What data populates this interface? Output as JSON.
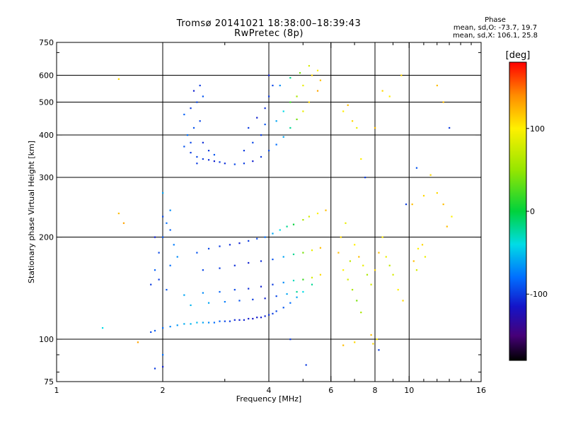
{
  "chart_data": {
    "type": "scatter",
    "title": "Tromsø 20141021 18:38:00–18:39:43",
    "subtitle": "RwPretec (8p)",
    "xlabel": "Frequency [MHz]",
    "ylabel": "Stationary phase Virtual Height [km]",
    "xscale": "log",
    "yscale": "log",
    "xlim": [
      1,
      16
    ],
    "ylim": [
      75,
      750
    ],
    "x_ticks": [
      1,
      2,
      4,
      6,
      8,
      10,
      16
    ],
    "x_tick_labels": [
      "1",
      "2",
      "4",
      "6",
      "8",
      "10",
      "16"
    ],
    "y_ticks": [
      75,
      100,
      200,
      300,
      400,
      500,
      600,
      750
    ],
    "y_tick_labels": [
      "75",
      "100",
      "200",
      "300",
      "400",
      "500",
      "600",
      "750"
    ],
    "grid": true,
    "stats": {
      "header": "Phase",
      "line_o": "mean, sd,O: -73.7, 19.7",
      "line_x": "mean, sd,X: 106.1, 25.8"
    },
    "colorbar": {
      "label": "[deg]",
      "ticks": [
        100,
        0,
        -100
      ],
      "tick_labels": [
        "100",
        "0",
        "-100"
      ],
      "range": [
        -180,
        180
      ]
    },
    "series": [
      {
        "points": [
          [
            1.85,
            105,
            -95
          ],
          [
            1.9,
            106,
            -88
          ],
          [
            2.0,
            108,
            -80
          ],
          [
            2.1,
            109,
            -72
          ],
          [
            2.2,
            110,
            -65
          ],
          [
            2.3,
            111,
            -58
          ],
          [
            2.4,
            111,
            -55
          ],
          [
            2.5,
            112,
            -52
          ],
          [
            2.6,
            112,
            -60
          ],
          [
            2.7,
            112,
            -70
          ],
          [
            2.8,
            112,
            -80
          ],
          [
            2.9,
            113,
            -85
          ],
          [
            3.0,
            113,
            -95
          ],
          [
            3.1,
            113,
            -100
          ],
          [
            3.2,
            114,
            -105
          ],
          [
            3.3,
            114,
            -110
          ],
          [
            3.4,
            114,
            -108
          ],
          [
            3.5,
            115,
            -112
          ],
          [
            3.6,
            115,
            -115
          ],
          [
            3.7,
            116,
            -112
          ],
          [
            3.8,
            116,
            -110
          ],
          [
            3.9,
            117,
            -108
          ],
          [
            4.0,
            118,
            -105
          ],
          [
            4.1,
            119,
            -100
          ],
          [
            4.2,
            121,
            -95
          ],
          [
            4.4,
            124,
            -90
          ],
          [
            4.6,
            128,
            -80
          ],
          [
            4.8,
            133,
            -60
          ],
          [
            5.0,
            138,
            -40
          ],
          [
            5.3,
            145,
            -20
          ],
          [
            2.0,
            200,
            -90
          ],
          [
            2.05,
            220,
            -80
          ],
          [
            2.1,
            240,
            -70
          ],
          [
            1.95,
            180,
            -95
          ],
          [
            1.9,
            160,
            -85
          ],
          [
            2.0,
            270,
            -60
          ],
          [
            2.15,
            190,
            -75
          ],
          [
            2.2,
            175,
            -70
          ],
          [
            1.95,
            150,
            -100
          ],
          [
            2.05,
            140,
            -90
          ],
          [
            2.1,
            210,
            -85
          ],
          [
            2.0,
            230,
            -95
          ],
          [
            1.9,
            200,
            -110
          ],
          [
            2.1,
            165,
            -80
          ],
          [
            1.85,
            145,
            -100
          ],
          [
            2.5,
            180,
            -90
          ],
          [
            2.7,
            185,
            -95
          ],
          [
            2.9,
            188,
            -100
          ],
          [
            3.1,
            190,
            -105
          ],
          [
            3.3,
            192,
            -110
          ],
          [
            3.5,
            195,
            -100
          ],
          [
            3.7,
            198,
            -95
          ],
          [
            3.9,
            200,
            -80
          ],
          [
            4.1,
            205,
            -60
          ],
          [
            4.3,
            210,
            -40
          ],
          [
            4.5,
            215,
            -20
          ],
          [
            4.7,
            218,
            0
          ],
          [
            5.0,
            225,
            60
          ],
          [
            5.2,
            230,
            80
          ],
          [
            5.5,
            235,
            100
          ],
          [
            5.8,
            240,
            120
          ],
          [
            2.6,
            160,
            -95
          ],
          [
            2.9,
            162,
            -100
          ],
          [
            3.2,
            165,
            -105
          ],
          [
            3.5,
            168,
            -110
          ],
          [
            3.8,
            170,
            -105
          ],
          [
            4.1,
            172,
            -90
          ],
          [
            4.4,
            175,
            -60
          ],
          [
            4.7,
            178,
            -20
          ],
          [
            5.0,
            180,
            40
          ],
          [
            5.3,
            183,
            90
          ],
          [
            5.6,
            186,
            120
          ],
          [
            2.3,
            135,
            -60
          ],
          [
            2.6,
            137,
            -70
          ],
          [
            2.9,
            138,
            -85
          ],
          [
            3.2,
            140,
            -95
          ],
          [
            3.5,
            141,
            -105
          ],
          [
            3.8,
            143,
            -110
          ],
          [
            4.1,
            145,
            -100
          ],
          [
            4.4,
            147,
            -70
          ],
          [
            4.7,
            149,
            -30
          ],
          [
            5.0,
            150,
            20
          ],
          [
            5.3,
            152,
            80
          ],
          [
            5.6,
            155,
            110
          ],
          [
            2.4,
            126,
            -55
          ],
          [
            2.7,
            128,
            -60
          ],
          [
            3.0,
            129,
            -75
          ],
          [
            3.3,
            130,
            -90
          ],
          [
            3.6,
            131,
            -100
          ],
          [
            3.9,
            132,
            -110
          ],
          [
            4.2,
            134,
            -95
          ],
          [
            4.5,
            136,
            -60
          ],
          [
            4.8,
            138,
            -20
          ],
          [
            2.3,
            370,
            -90
          ],
          [
            2.4,
            355,
            -100
          ],
          [
            2.5,
            345,
            -95
          ],
          [
            2.6,
            340,
            -100
          ],
          [
            2.7,
            338,
            -105
          ],
          [
            2.8,
            335,
            -110
          ],
          [
            2.9,
            333,
            -100
          ],
          [
            3.0,
            330,
            -105
          ],
          [
            3.2,
            328,
            -95
          ],
          [
            3.4,
            330,
            -100
          ],
          [
            3.6,
            335,
            -110
          ],
          [
            3.8,
            345,
            -100
          ],
          [
            4.0,
            360,
            -95
          ],
          [
            4.2,
            375,
            -80
          ],
          [
            4.4,
            395,
            -60
          ],
          [
            4.6,
            420,
            -20
          ],
          [
            4.8,
            445,
            40
          ],
          [
            5.0,
            470,
            90
          ],
          [
            5.2,
            500,
            110
          ],
          [
            5.5,
            540,
            130
          ],
          [
            2.35,
            400,
            -80
          ],
          [
            2.45,
            420,
            -90
          ],
          [
            2.55,
            440,
            -95
          ],
          [
            2.3,
            460,
            -85
          ],
          [
            2.4,
            480,
            -100
          ],
          [
            2.5,
            500,
            -95
          ],
          [
            2.6,
            520,
            -90
          ],
          [
            2.45,
            540,
            -110
          ],
          [
            2.55,
            560,
            -100
          ],
          [
            2.4,
            380,
            -95
          ],
          [
            2.6,
            380,
            -105
          ],
          [
            2.7,
            360,
            -100
          ],
          [
            2.8,
            350,
            -90
          ],
          [
            2.5,
            330,
            -100
          ],
          [
            3.5,
            420,
            -100
          ],
          [
            3.7,
            450,
            -110
          ],
          [
            3.9,
            480,
            -105
          ],
          [
            4.0,
            520,
            -100
          ],
          [
            4.1,
            560,
            -95
          ],
          [
            4.0,
            600,
            -110
          ],
          [
            3.8,
            400,
            -100
          ],
          [
            3.6,
            380,
            -95
          ],
          [
            3.4,
            360,
            -100
          ],
          [
            3.9,
            430,
            -90
          ],
          [
            4.2,
            440,
            -60
          ],
          [
            4.4,
            470,
            -40
          ],
          [
            4.6,
            500,
            20
          ],
          [
            4.8,
            520,
            60
          ],
          [
            5.0,
            560,
            90
          ],
          [
            5.3,
            600,
            110
          ],
          [
            5.6,
            580,
            120
          ],
          [
            5.5,
            620,
            100
          ],
          [
            5.2,
            640,
            80
          ],
          [
            4.9,
            610,
            40
          ],
          [
            4.6,
            590,
            -20
          ],
          [
            4.3,
            560,
            -70
          ],
          [
            6.3,
            180,
            120
          ],
          [
            6.5,
            160,
            100
          ],
          [
            6.7,
            150,
            80
          ],
          [
            6.9,
            140,
            60
          ],
          [
            7.1,
            130,
            40
          ],
          [
            7.3,
            120,
            60
          ],
          [
            6.4,
            200,
            110
          ],
          [
            6.6,
            220,
            90
          ],
          [
            6.8,
            170,
            70
          ],
          [
            7.0,
            190,
            100
          ],
          [
            7.2,
            175,
            120
          ],
          [
            7.4,
            165,
            90
          ],
          [
            7.6,
            155,
            60
          ],
          [
            7.8,
            145,
            80
          ],
          [
            8.0,
            160,
            110
          ],
          [
            8.2,
            180,
            120
          ],
          [
            8.4,
            200,
            100
          ],
          [
            8.6,
            175,
            90
          ],
          [
            8.8,
            165,
            70
          ],
          [
            9.0,
            155,
            80
          ],
          [
            9.3,
            140,
            100
          ],
          [
            9.6,
            130,
            110
          ],
          [
            10.3,
            170,
            120
          ],
          [
            10.6,
            185,
            100
          ],
          [
            10.9,
            190,
            110
          ],
          [
            11.1,
            175,
            90
          ],
          [
            10.5,
            160,
            80
          ],
          [
            6.5,
            470,
            100
          ],
          [
            6.7,
            490,
            120
          ],
          [
            6.9,
            440,
            110
          ],
          [
            7.1,
            420,
            90
          ],
          [
            7.3,
            340,
            100
          ],
          [
            7.5,
            300,
            -100
          ],
          [
            8.0,
            420,
            120
          ],
          [
            8.4,
            540,
            110
          ],
          [
            8.8,
            520,
            100
          ],
          [
            9.5,
            600,
            110
          ],
          [
            10.5,
            320,
            -90
          ],
          [
            12.5,
            500,
            120
          ],
          [
            13.0,
            420,
            -100
          ],
          [
            12.0,
            560,
            120
          ],
          [
            1.5,
            585,
            110
          ],
          [
            1.5,
            235,
            120
          ],
          [
            1.55,
            220,
            130
          ],
          [
            1.35,
            108,
            -40
          ],
          [
            1.7,
            98,
            130
          ],
          [
            2.0,
            90,
            -80
          ],
          [
            2.0,
            83,
            -110
          ],
          [
            1.9,
            82,
            -100
          ],
          [
            4.6,
            100,
            -100
          ],
          [
            5.1,
            84,
            -100
          ],
          [
            6.5,
            96,
            120
          ],
          [
            7.0,
            98,
            110
          ],
          [
            7.9,
            97,
            110
          ],
          [
            7.8,
            103,
            120
          ],
          [
            8.1,
            100,
            100
          ],
          [
            8.2,
            93,
            -100
          ],
          [
            12.0,
            270,
            110
          ],
          [
            12.5,
            250,
            120
          ],
          [
            13.2,
            230,
            100
          ],
          [
            12.8,
            215,
            120
          ],
          [
            11.5,
            305,
            110
          ],
          [
            9.8,
            250,
            -100
          ],
          [
            10.2,
            250,
            120
          ],
          [
            11.0,
            265,
            110
          ]
        ]
      }
    ]
  }
}
